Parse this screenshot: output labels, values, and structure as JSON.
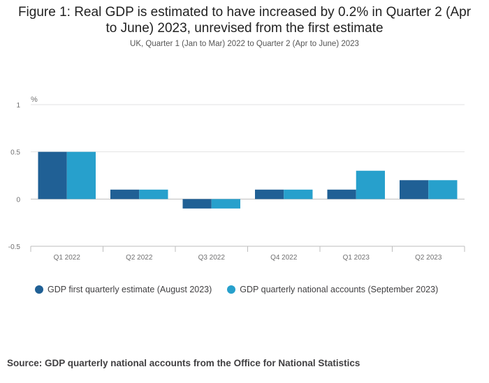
{
  "title": "Figure 1: Real GDP is estimated to have increased by 0.2% in Quarter 2 (Apr to June) 2023, unrevised from the first estimate",
  "subtitle": "UK, Quarter 1 (Jan to Mar) 2022 to Quarter 2 (Apr to June) 2023",
  "source": "Source: GDP quarterly national accounts from the Office for National Statistics",
  "chart_data": {
    "type": "bar",
    "title": "Figure 1: Real GDP is estimated to have increased by 0.2% in Quarter 2 (Apr to June) 2023, unrevised from the first estimate",
    "subtitle": "UK, Quarter 1 (Jan to Mar) 2022 to Quarter 2 (Apr to June) 2023",
    "ylabel": "%",
    "ylim": [
      -0.5,
      1
    ],
    "yticks": [
      1,
      0.5,
      0,
      -0.5
    ],
    "ytick_labels": [
      "1",
      "0.5",
      "0",
      "-0.5"
    ],
    "grid": true,
    "legend_position": "bottom",
    "categories": [
      "Q1 2022",
      "Q2 2022",
      "Q3 2022",
      "Q4 2022",
      "Q1 2023",
      "Q2 2023"
    ],
    "series": [
      {
        "name": "GDP first quarterly estimate (August 2023)",
        "color": "#206095",
        "values": [
          0.5,
          0.1,
          -0.1,
          0.1,
          0.1,
          0.2
        ]
      },
      {
        "name": "GDP quarterly national accounts (September 2023)",
        "color": "#27a0cc",
        "values": [
          0.5,
          0.1,
          -0.1,
          0.1,
          0.3,
          0.2
        ]
      }
    ]
  }
}
